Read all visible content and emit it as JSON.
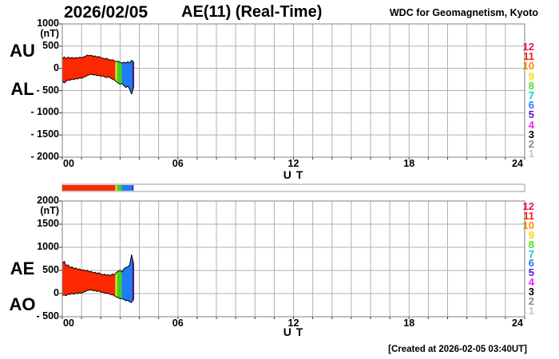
{
  "header": {
    "date": "2026/02/05",
    "title": "AE(11) (Real-Time)",
    "source": "WDC for Geomagnetism, Kyoto"
  },
  "footer": {
    "created": "[Created at 2026-02-05 03:40UT]"
  },
  "colors": {
    "background": "#ffffff",
    "grid": "#b0b0b0",
    "border": "#808080",
    "tick": "#333333",
    "outline": "#000000"
  },
  "station_legend": {
    "counts": [
      "12",
      "11",
      "10",
      "9",
      "8",
      "7",
      "6",
      "5",
      "4",
      "3",
      "2",
      "1"
    ],
    "colors": [
      "#ee1166",
      "#ff2200",
      "#ff8800",
      "#f0dd00",
      "#55dd22",
      "#00cce8",
      "#2277ff",
      "#5511dd",
      "#ee22ee",
      "#000000",
      "#888888",
      "#c4c4c4"
    ]
  },
  "chart_data": [
    {
      "type": "area",
      "panel": "upper",
      "left_axis_labels": [
        "AU",
        "AL"
      ],
      "unit": "(nT)",
      "ylim": [
        -2000,
        1000
      ],
      "yticks": [
        1000,
        500,
        0,
        -500,
        -1000,
        -1500,
        -2000
      ],
      "ytick_labels": [
        "1000",
        "500",
        "0",
        "- 500",
        "- 1000",
        "- 1500",
        "- 2000"
      ],
      "xlim_hours": [
        0,
        24
      ],
      "xtick_hours": [
        0,
        6,
        12,
        18,
        24
      ],
      "xtick_labels": [
        "00",
        "06",
        "12",
        "18",
        "24"
      ],
      "xlabel": "U T",
      "grid": true,
      "x_hours": [
        0,
        0.1,
        0.2,
        0.3,
        0.4,
        0.5,
        0.6,
        0.7,
        0.8,
        0.9,
        1.0,
        1.1,
        1.2,
        1.3,
        1.4,
        1.5,
        1.6,
        1.7,
        1.8,
        1.9,
        2.0,
        2.1,
        2.2,
        2.3,
        2.4,
        2.5,
        2.6,
        2.7,
        2.8,
        2.9,
        3.0,
        3.1,
        3.2,
        3.3,
        3.4,
        3.5,
        3.6,
        3.7
      ],
      "series": [
        {
          "name": "AU",
          "values": [
            200,
            260,
            215,
            255,
            230,
            245,
            225,
            240,
            235,
            250,
            240,
            255,
            270,
            300,
            285,
            295,
            270,
            280,
            255,
            265,
            240,
            230,
            215,
            225,
            200,
            185,
            195,
            170,
            150,
            160,
            135,
            120,
            140,
            115,
            150,
            120,
            180,
            145
          ]
        },
        {
          "name": "AL",
          "values": [
            -280,
            -330,
            -290,
            -260,
            -270,
            -240,
            -255,
            -230,
            -240,
            -215,
            -225,
            -200,
            -185,
            -160,
            -145,
            -130,
            -150,
            -140,
            -165,
            -155,
            -180,
            -170,
            -195,
            -205,
            -190,
            -220,
            -240,
            -260,
            -300,
            -330,
            -360,
            -340,
            -390,
            -430,
            -400,
            -470,
            -580,
            -430
          ]
        }
      ],
      "station_count_segments": [
        {
          "stations": 11,
          "color": "#fb2800",
          "from": 0,
          "to": 2.75
        },
        {
          "stations": 9,
          "color": "#b8e312",
          "from": 2.75,
          "to": 2.85
        },
        {
          "stations": 8,
          "color": "#3fd01d",
          "from": 2.85,
          "to": 3.08
        },
        {
          "stations": 6,
          "color": "#1e7df0",
          "from": 3.08,
          "to": 3.62
        },
        {
          "stations": 5,
          "color": "#4a1fd0",
          "from": 3.62,
          "to": 3.7
        }
      ]
    },
    {
      "type": "area",
      "panel": "lower",
      "left_axis_labels": [
        "AE",
        "AO"
      ],
      "unit": "(nT)",
      "ylim": [
        -500,
        2000
      ],
      "yticks": [
        2000,
        1500,
        1000,
        500,
        0,
        -500
      ],
      "ytick_labels": [
        "2000",
        "1500",
        "1000",
        "500",
        "0",
        "- 500"
      ],
      "xlim_hours": [
        0,
        24
      ],
      "xtick_hours": [
        0,
        6,
        12,
        18,
        24
      ],
      "xtick_labels": [
        "00",
        "06",
        "12",
        "18",
        "24"
      ],
      "xlabel": "U T",
      "grid": true,
      "x_hours": [
        0,
        0.1,
        0.2,
        0.3,
        0.4,
        0.5,
        0.6,
        0.7,
        0.8,
        0.9,
        1.0,
        1.1,
        1.2,
        1.3,
        1.4,
        1.5,
        1.6,
        1.7,
        1.8,
        1.9,
        2.0,
        2.1,
        2.2,
        2.3,
        2.4,
        2.5,
        2.6,
        2.7,
        2.8,
        2.9,
        3.0,
        3.1,
        3.2,
        3.3,
        3.4,
        3.5,
        3.6,
        3.7
      ],
      "series": [
        {
          "name": "AE",
          "values": [
            650,
            700,
            600,
            620,
            560,
            580,
            540,
            555,
            520,
            535,
            505,
            515,
            490,
            505,
            470,
            480,
            450,
            460,
            435,
            450,
            425,
            405,
            420,
            395,
            410,
            385,
            425,
            405,
            455,
            485,
            505,
            465,
            535,
            565,
            575,
            620,
            840,
            640
          ]
        },
        {
          "name": "AO",
          "values": [
            -40,
            -30,
            -45,
            -10,
            -20,
            5,
            -15,
            10,
            0,
            20,
            10,
            30,
            45,
            70,
            70,
            85,
            60,
            70,
            45,
            55,
            30,
            30,
            10,
            10,
            5,
            -20,
            -25,
            -45,
            -75,
            -85,
            -110,
            -110,
            -125,
            -155,
            -140,
            -180,
            -190,
            -130
          ]
        }
      ],
      "station_count_segments": [
        {
          "stations": 11,
          "color": "#fb2800",
          "from": 0,
          "to": 2.75
        },
        {
          "stations": 9,
          "color": "#b8e312",
          "from": 2.75,
          "to": 2.85
        },
        {
          "stations": 8,
          "color": "#3fd01d",
          "from": 2.85,
          "to": 3.08
        },
        {
          "stations": 6,
          "color": "#1e7df0",
          "from": 3.08,
          "to": 3.62
        },
        {
          "stations": 5,
          "color": "#4a1fd0",
          "from": 3.62,
          "to": 3.7
        }
      ]
    }
  ],
  "availability_bar": {
    "xlim_hours": [
      0,
      24
    ],
    "empty_color": "#ffffff",
    "border_color": "#999999",
    "segments": [
      {
        "stations": 11,
        "color": "#fb2800",
        "from": 0,
        "to": 2.75
      },
      {
        "stations": 9,
        "color": "#b8e312",
        "from": 2.75,
        "to": 2.85
      },
      {
        "stations": 8,
        "color": "#3fd01d",
        "from": 2.85,
        "to": 3.08
      },
      {
        "stations": 6,
        "color": "#1e7df0",
        "from": 3.08,
        "to": 3.62
      },
      {
        "stations": 5,
        "color": "#4a1fd0",
        "from": 3.62,
        "to": 3.7
      }
    ]
  }
}
